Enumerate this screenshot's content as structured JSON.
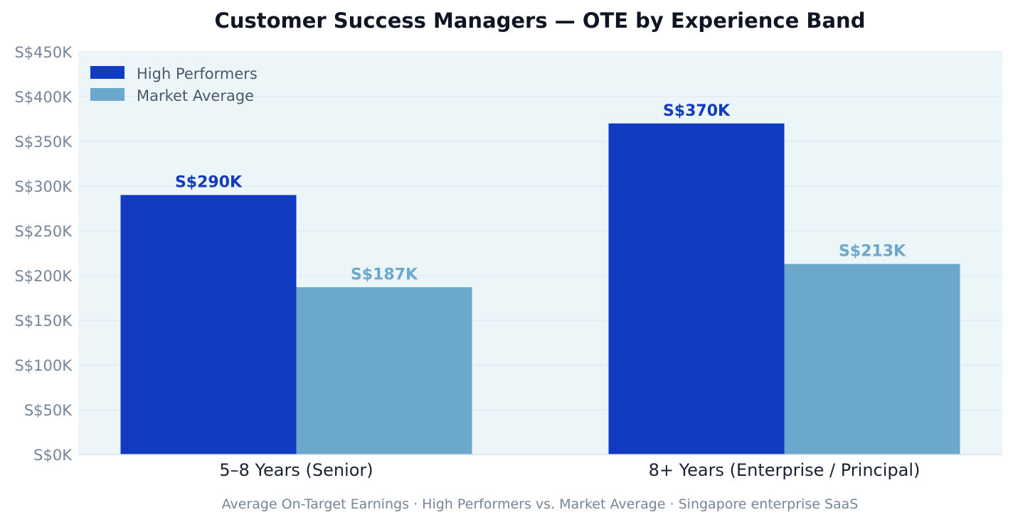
{
  "chart_data": {
    "type": "bar",
    "title": "Customer Success Managers — OTE by Experience Band",
    "subtitle": "Average On-Target Earnings · High Performers vs. Market Average · Singapore enterprise SaaS",
    "xlabel": "",
    "ylabel": "",
    "categories": [
      "5–8 Years  (Senior)",
      "8+ Years  (Enterprise / Principal)"
    ],
    "series": [
      {
        "name": "High Performers",
        "color": "#113cc2",
        "values": [
          290,
          370
        ],
        "labels": [
          "S$290K",
          "S$370K"
        ]
      },
      {
        "name": "Market Average",
        "color": "#6ca8cc",
        "values": [
          187,
          213
        ],
        "labels": [
          "S$187K",
          "S$213K"
        ]
      }
    ],
    "ylim": [
      0,
      450
    ],
    "yticks": [
      0,
      50,
      100,
      150,
      200,
      250,
      300,
      350,
      400,
      450
    ],
    "ytick_labels": [
      "S$0K",
      "S$50K",
      "S$100K",
      "S$150K",
      "S$200K",
      "S$250K",
      "S$300K",
      "S$350K",
      "S$400K",
      "S$450K"
    ],
    "grid": true,
    "legend_position": "top-left"
  },
  "colors": {
    "plot_background": "#ecf5f8",
    "grid": "#dde9f0",
    "axis_line": "#d8e0ea",
    "title": "#0f1623",
    "tick_y": "#76859a",
    "tick_x": "#1a2232",
    "legend_text": "#4b586c",
    "subtitle": "#76859a"
  }
}
